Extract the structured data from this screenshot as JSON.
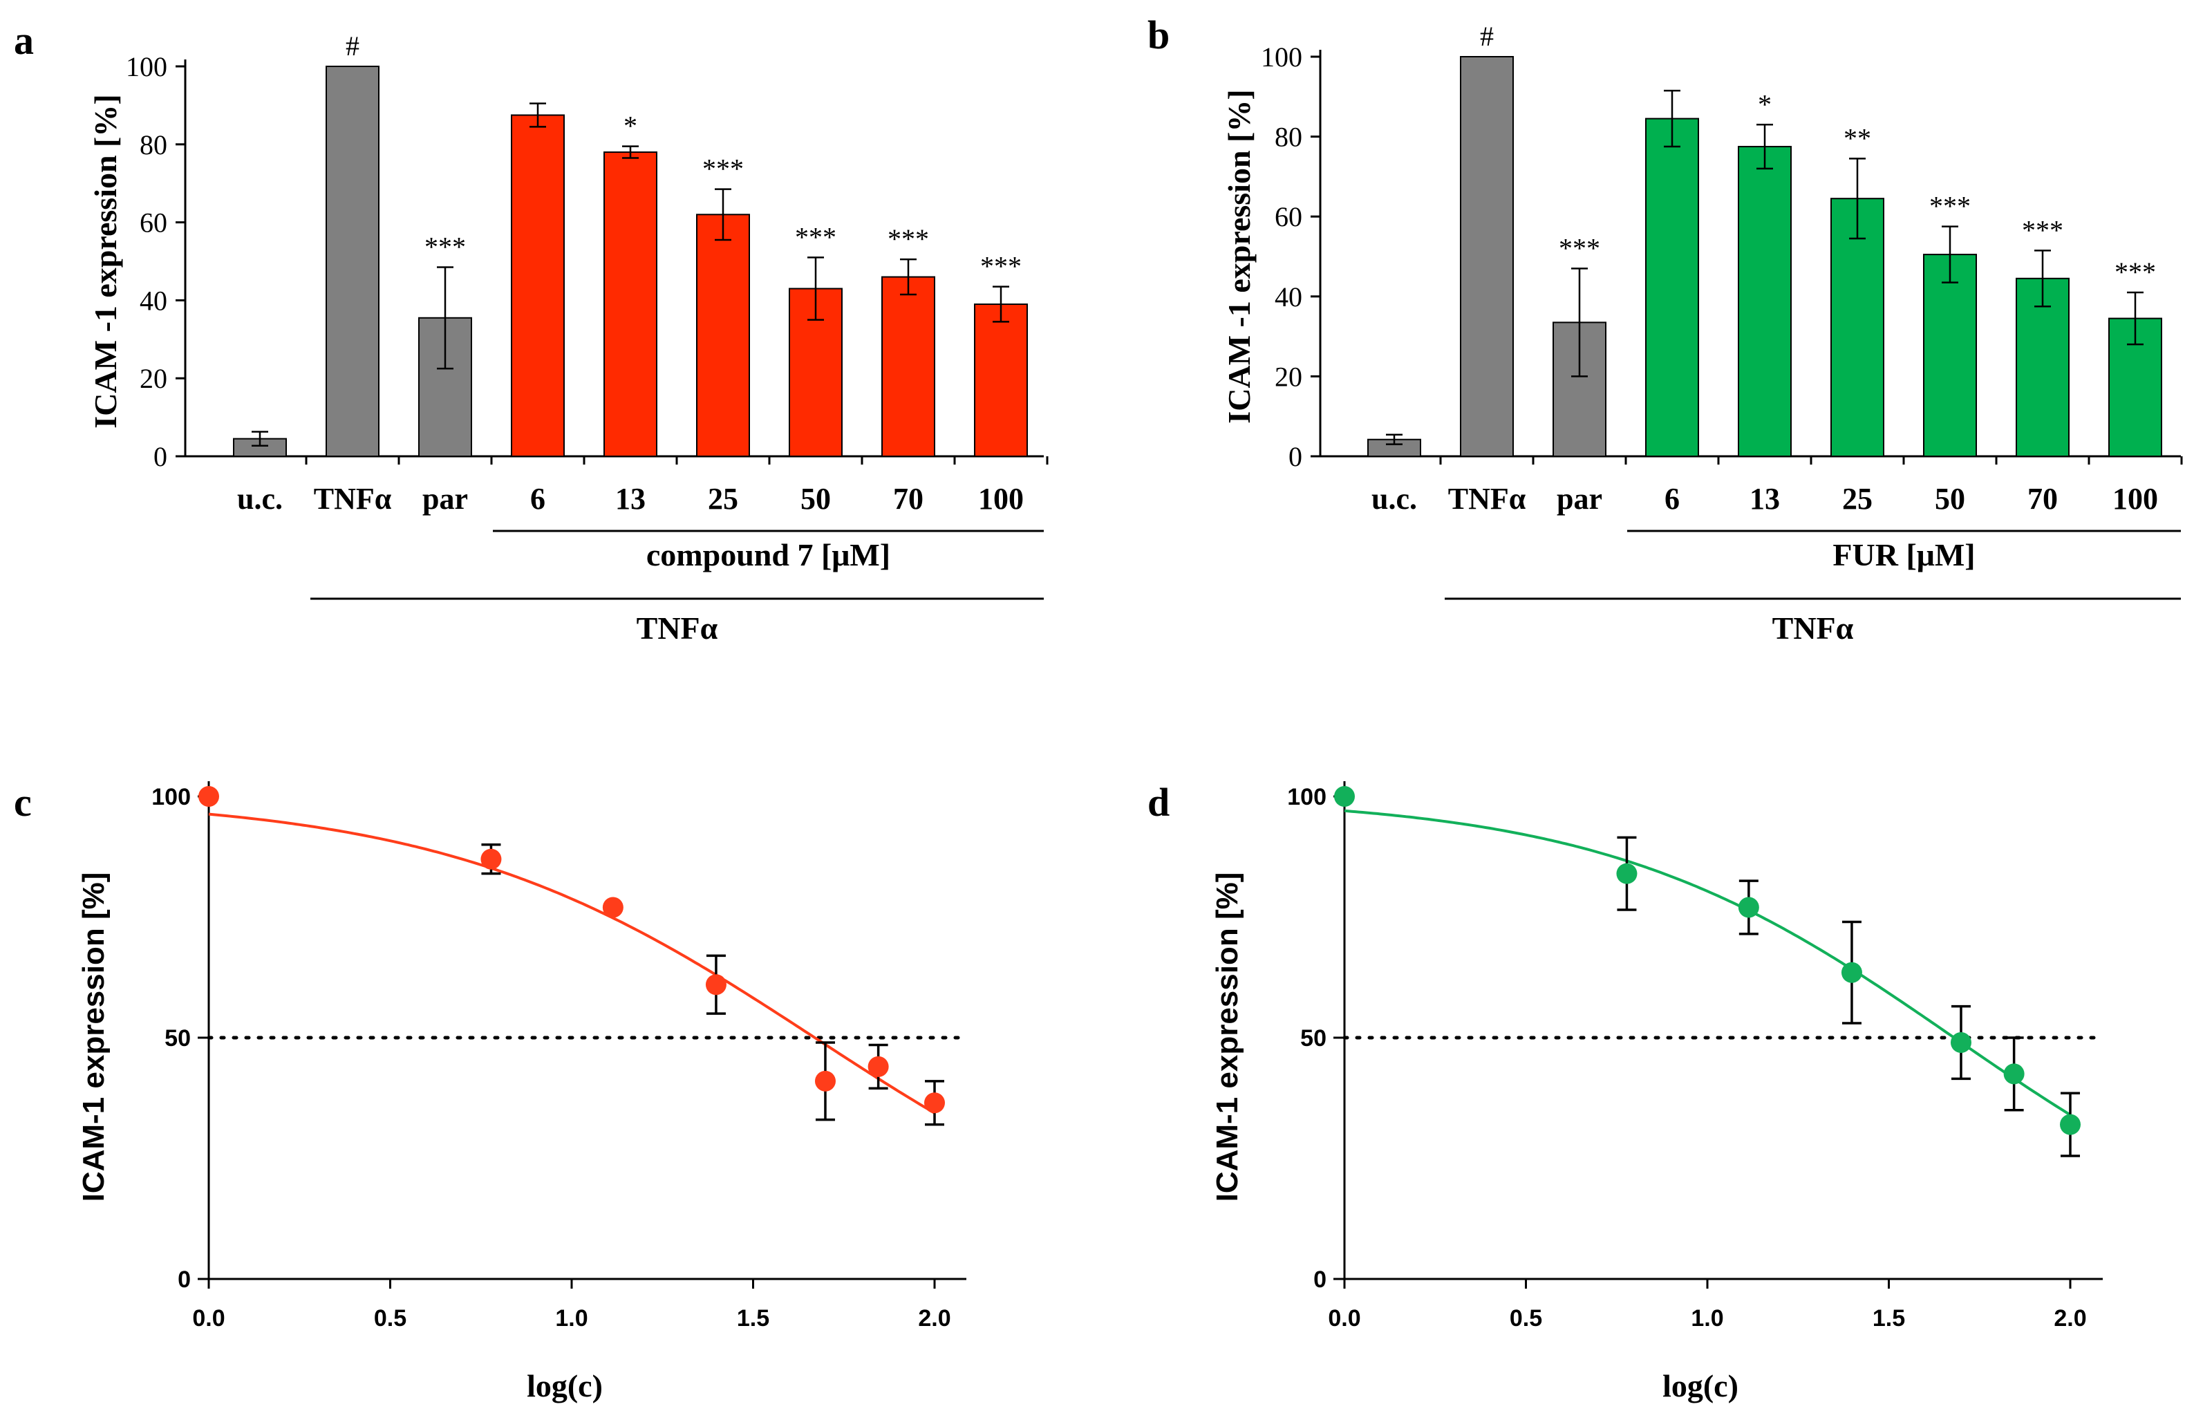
{
  "chart_data": [
    {
      "panel": "a",
      "type": "bar",
      "ylabel": "ICAM -1 expression [%]",
      "ylim": [
        0,
        100
      ],
      "yticks": [
        "0",
        "20",
        "40",
        "60",
        "80",
        "100"
      ],
      "categories": [
        "u.c.",
        "TNFα",
        "par",
        "6",
        "13",
        "25",
        "50",
        "70",
        "100"
      ],
      "values": [
        4.5,
        100,
        35.5,
        87.5,
        78,
        62,
        43,
        46,
        39
      ],
      "errors": [
        1.8,
        0,
        13,
        3,
        1.5,
        6.5,
        8,
        4.5,
        4.5
      ],
      "significance": [
        "",
        "#",
        "***",
        "",
        "*",
        "***",
        "***",
        "***",
        "***"
      ],
      "bar_colors": [
        "#808080",
        "#808080",
        "#808080",
        "#ff2a00",
        "#ff2a00",
        "#ff2a00",
        "#ff2a00",
        "#ff2a00",
        "#ff2a00"
      ],
      "group_label": "compound 7 [μM]",
      "outer_label": "TNFα"
    },
    {
      "panel": "b",
      "type": "bar",
      "ylabel": "ICAM -1 expression [%]",
      "ylim": [
        0,
        100
      ],
      "yticks": [
        "0",
        "20",
        "40",
        "60",
        "80",
        "100"
      ],
      "categories": [
        "u.c.",
        "TNFα",
        "par",
        "6",
        "13",
        "25",
        "50",
        "70",
        "100"
      ],
      "values": [
        4.2,
        100,
        33.5,
        84.5,
        77.5,
        64.5,
        50.5,
        44.5,
        34.5
      ],
      "errors": [
        1.2,
        0,
        13.5,
        7,
        5.5,
        10,
        7,
        7,
        6.5
      ],
      "significance": [
        "",
        "#",
        "***",
        "",
        "*",
        "**",
        "***",
        "***",
        "***"
      ],
      "bar_colors": [
        "#808080",
        "#808080",
        "#808080",
        "#00b04f",
        "#00b04f",
        "#00b04f",
        "#00b04f",
        "#00b04f",
        "#00b04f"
      ],
      "group_label": "FUR [μM]",
      "outer_label": "TNFα"
    },
    {
      "panel": "c",
      "type": "scatter",
      "xlabel": "log(c)",
      "ylabel": "ICAM-1 expression [%]",
      "xlim": [
        0,
        2.1
      ],
      "ylim": [
        0,
        100
      ],
      "xticks": [
        "0.0",
        "0.5",
        "1.0",
        "1.5",
        "2.0"
      ],
      "yticks": [
        "0",
        "50",
        "100"
      ],
      "color": "#ff3d1a",
      "points": [
        {
          "x": 0,
          "y": 100,
          "err": 0
        },
        {
          "x": 0.778,
          "y": 87,
          "err": 3
        },
        {
          "x": 1.114,
          "y": 77,
          "err": 0
        },
        {
          "x": 1.398,
          "y": 61,
          "err": 6
        },
        {
          "x": 1.699,
          "y": 41,
          "err": 8
        },
        {
          "x": 1.845,
          "y": 44,
          "err": 4.5
        },
        {
          "x": 2.0,
          "y": 36.5,
          "err": 4.5
        }
      ],
      "fit": {
        "top": 100,
        "bottom": 0,
        "logIC50": 1.67,
        "hill": 0.85
      },
      "reference_line": 50
    },
    {
      "panel": "d",
      "type": "scatter",
      "xlabel": "log(c)",
      "ylabel": "ICAM-1 expression [%]",
      "xlim": [
        0,
        2.1
      ],
      "ylim": [
        0,
        100
      ],
      "xticks": [
        "0.0",
        "0.5",
        "1.0",
        "1.5",
        "2.0"
      ],
      "yticks": [
        "0",
        "50",
        "100"
      ],
      "color": "#12b05a",
      "points": [
        {
          "x": 0,
          "y": 100,
          "err": 0
        },
        {
          "x": 0.778,
          "y": 84,
          "err": 7.5
        },
        {
          "x": 1.114,
          "y": 77,
          "err": 5.5
        },
        {
          "x": 1.398,
          "y": 63.5,
          "err": 10.5
        },
        {
          "x": 1.699,
          "y": 49,
          "err": 7.5
        },
        {
          "x": 1.845,
          "y": 42.5,
          "err": 7.5
        },
        {
          "x": 2.0,
          "y": 32,
          "err": 6.5
        }
      ],
      "fit": {
        "top": 100,
        "bottom": 0,
        "logIC50": 1.68,
        "hill": 0.9
      },
      "reference_line": 50
    }
  ]
}
